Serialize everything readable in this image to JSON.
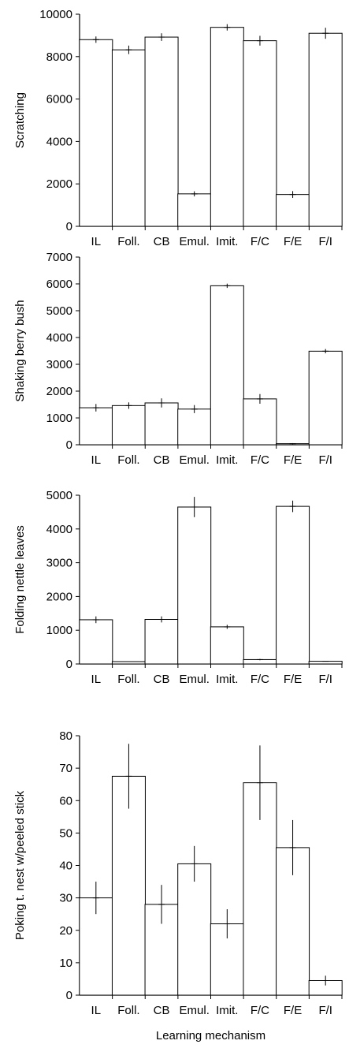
{
  "chart_data": [
    {
      "type": "bar",
      "categories": [
        "IL",
        "Foll.",
        "CB",
        "Emul.",
        "Imit.",
        "F/C",
        "F/E",
        "F/I"
      ],
      "values": [
        8800,
        8320,
        8920,
        1530,
        9380,
        8750,
        1500,
        9100
      ],
      "errors": [
        150,
        200,
        180,
        120,
        150,
        230,
        160,
        260
      ],
      "ylabel": "Scratching",
      "xlabel": "",
      "ylim": [
        0,
        10000
      ],
      "yticks": [
        "0",
        "2000",
        "4000",
        "6000",
        "8000",
        "10000"
      ]
    },
    {
      "type": "bar",
      "categories": [
        "IL",
        "Foll.",
        "CB",
        "Emul.",
        "Imit.",
        "F/C",
        "F/E",
        "F/I"
      ],
      "values": [
        1380,
        1460,
        1560,
        1330,
        5930,
        1710,
        40,
        3490
      ],
      "errors": [
        140,
        120,
        170,
        150,
        80,
        180,
        20,
        80
      ],
      "ylabel": "Shaking berry bush",
      "xlabel": "",
      "ylim": [
        0,
        7000
      ],
      "yticks": [
        "0",
        "1000",
        "2000",
        "3000",
        "4000",
        "5000",
        "6000",
        "7000"
      ]
    },
    {
      "type": "bar",
      "categories": [
        "IL",
        "Foll.",
        "CB",
        "Emul.",
        "Imit.",
        "F/C",
        "F/E",
        "F/I"
      ],
      "values": [
        1310,
        70,
        1320,
        4650,
        1100,
        130,
        4670,
        80
      ],
      "errors": [
        100,
        10,
        90,
        300,
        60,
        20,
        170,
        10
      ],
      "ylabel": "Folding nettle leaves",
      "xlabel": "",
      "ylim": [
        0,
        5000
      ],
      "yticks": [
        "0",
        "1000",
        "2000",
        "3000",
        "4000",
        "5000"
      ]
    },
    {
      "type": "bar",
      "categories": [
        "IL",
        "Foll.",
        "CB",
        "Emul.",
        "Imit.",
        "F/C",
        "F/E",
        "F/I"
      ],
      "values": [
        30,
        67.5,
        28,
        40.5,
        22,
        65.5,
        45.5,
        4.5
      ],
      "errors": [
        5,
        10,
        6,
        5.5,
        4.5,
        11.5,
        8.5,
        1.5
      ],
      "ylabel": "Poking t. nest w/peeled stick",
      "xlabel": "Learning mechanism",
      "ylim": [
        0,
        80
      ],
      "yticks": [
        "0",
        "10",
        "20",
        "30",
        "40",
        "50",
        "60",
        "70",
        "80"
      ]
    }
  ]
}
